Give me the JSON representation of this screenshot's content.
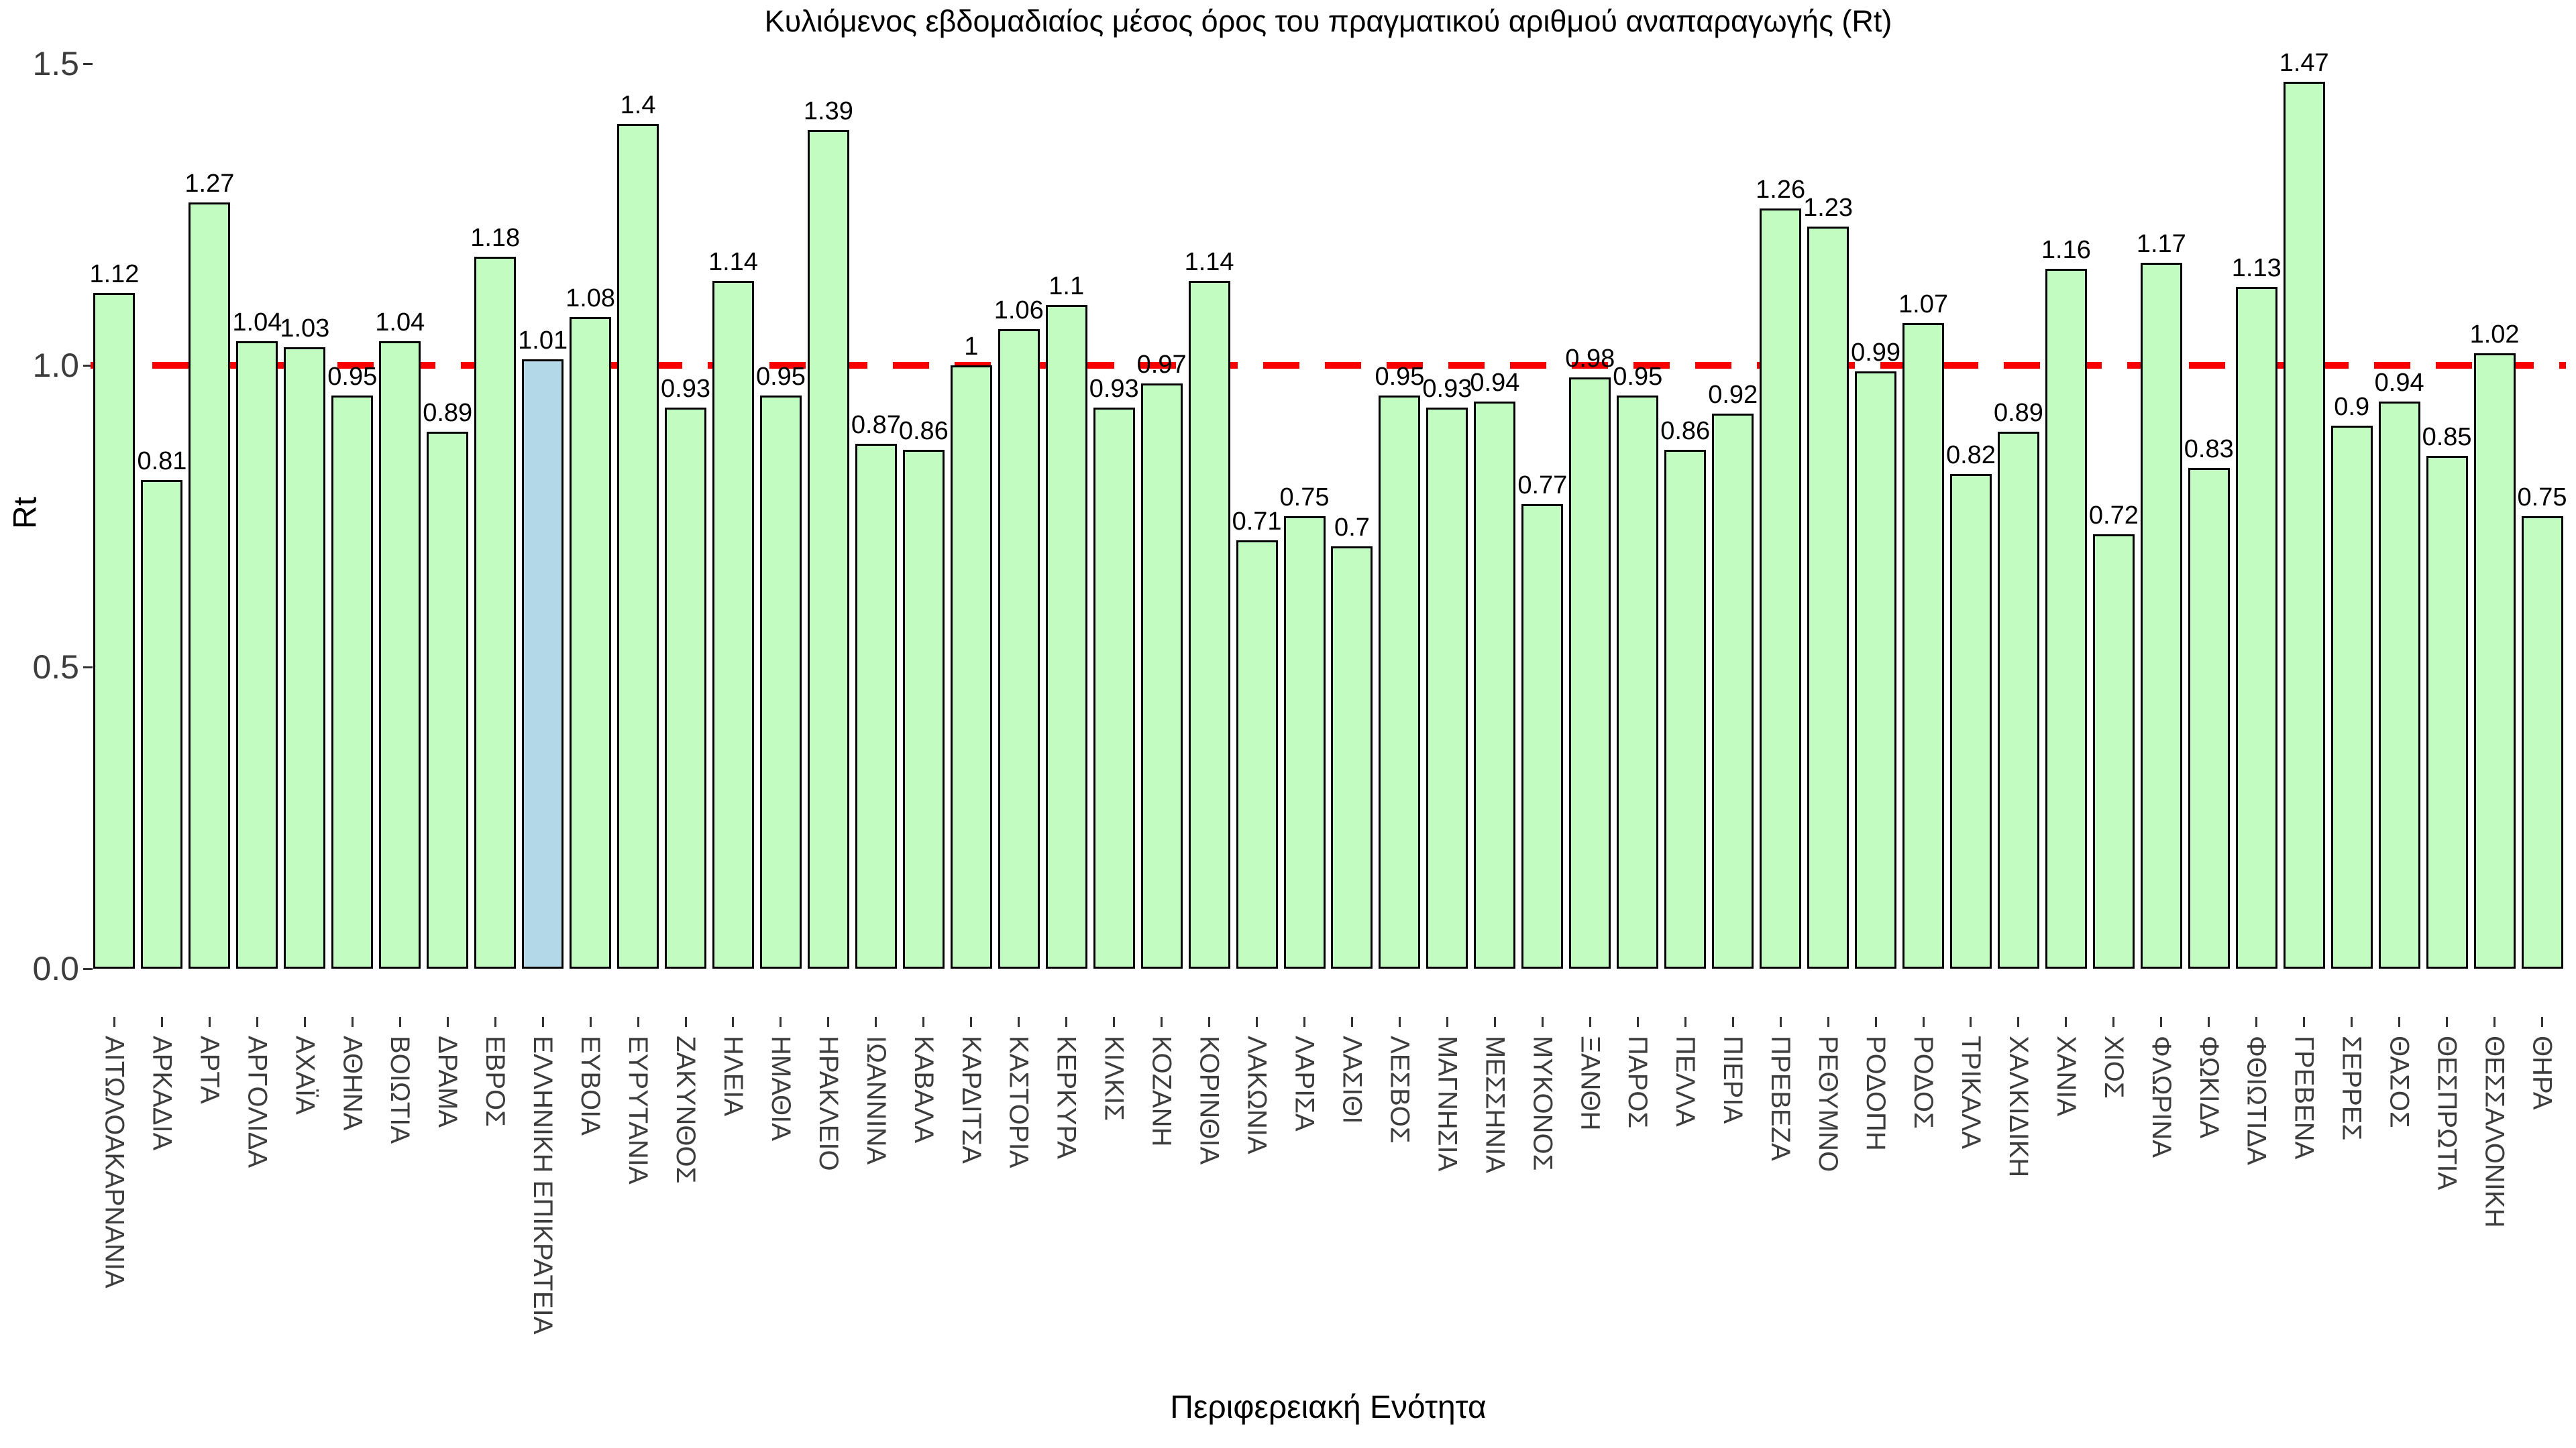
{
  "title": "Κυλιόμενος εβδομαδιαίος μέσος όρος του πραγματικού αριθμού αναπαραγωγής (Rt)",
  "y_axis": {
    "label": "Rt",
    "ticks": [
      {
        "label": "0.0",
        "value": 0.0
      },
      {
        "label": "0.5",
        "value": 0.5
      },
      {
        "label": "1.0",
        "value": 1.0
      },
      {
        "label": "1.5",
        "value": 1.5
      }
    ]
  },
  "x_axis": {
    "label": "Περιφερειακή Ενότητα"
  },
  "colors": {
    "bar_fill": "#c3fcc1",
    "highlight_fill": "#b3d9e9",
    "bar_border": "#000000",
    "reference_line": "#f80000",
    "tick_text": "#3d3d3d"
  },
  "chart_data": {
    "type": "bar",
    "title": "Κυλιόμενος εβδομαδιαίος μέσος όρος του πραγματικού αριθμού αναπαραγωγής (Rt)",
    "xlabel": "Περιφερειακή Ενότητα",
    "ylabel": "Rt",
    "ylim": [
      0,
      1.55
    ],
    "grid": false,
    "reference_line_y": 1.0,
    "reference_line_style": "dashed",
    "highlighted_category": "ΕΛΛΗΝΙΚΗ ΕΠΙΚΡΑΤΕΙΑ",
    "categories": [
      "ΑΙΤΩΛΟΑΚΑΡΝΑΝΙΑ",
      "ΑΡΚΑΔΙΑ",
      "ΑΡΤΑ",
      "ΑΡΓΟΛΙΔΑ",
      "ΑΧΑΪΑ",
      "ΑΘΗΝΑ",
      "ΒΟΙΩΤΙΑ",
      "ΔΡΑΜΑ",
      "ΕΒΡΟΣ",
      "ΕΛΛΗΝΙΚΗ ΕΠΙΚΡΑΤΕΙΑ",
      "ΕΥΒΟΙΑ",
      "ΕΥΡΥΤΑΝΙΑ",
      "ΖΑΚΥΝΘΟΣ",
      "ΗΛΕΙΑ",
      "ΗΜΑΘΙΑ",
      "ΗΡΑΚΛΕΙΟ",
      "ΙΩΑΝΝΙΝΑ",
      "ΚΑΒΑΛΑ",
      "ΚΑΡΔΙΤΣΑ",
      "ΚΑΣΤΟΡΙΑ",
      "ΚΕΡΚΥΡΑ",
      "ΚΙΛΚΙΣ",
      "ΚΟΖΑΝΗ",
      "ΚΟΡΙΝΘΙΑ",
      "ΛΑΚΩΝΙΑ",
      "ΛΑΡΙΣΑ",
      "ΛΑΣΙΘΙ",
      "ΛΕΣΒΟΣ",
      "ΜΑΓΝΗΣΙΑ",
      "ΜΕΣΣΗΝΙΑ",
      "ΜΥΚΟΝΟΣ",
      "ΞΑΝΘΗ",
      "ΠΑΡΟΣ",
      "ΠΕΛΛΑ",
      "ΠΙΕΡΙΑ",
      "ΠΡΕΒΕΖΑ",
      "ΡΕΘΥΜΝΟ",
      "ΡΟΔΟΠΗ",
      "ΡΟΔΟΣ",
      "ΤΡΙΚΑΛΑ",
      "ΧΑΛΚΙΔΙΚΗ",
      "ΧΑΝΙΑ",
      "ΧΙΟΣ",
      "ΦΛΩΡΙΝΑ",
      "ΦΩΚΙΔΑ",
      "ΦΘΙΩΤΙΔΑ",
      "ΓΡΕΒΕΝΑ",
      "ΣΕΡΡΕΣ",
      "ΘΑΣΟΣ",
      "ΘΕΣΠΡΩΤΙΑ",
      "ΘΕΣΣΑΛΟΝΙΚΗ",
      "ΘΗΡΑ"
    ],
    "values": [
      1.12,
      0.81,
      1.27,
      1.04,
      1.03,
      0.95,
      1.04,
      0.89,
      1.18,
      1.01,
      1.08,
      1.4,
      0.93,
      1.14,
      0.95,
      1.39,
      0.87,
      0.86,
      1,
      1.06,
      1.1,
      0.93,
      0.97,
      1.14,
      0.71,
      0.75,
      0.7,
      0.95,
      0.93,
      0.94,
      0.77,
      0.98,
      0.95,
      0.86,
      0.92,
      1.26,
      1.23,
      0.99,
      1.07,
      0.82,
      0.89,
      1.16,
      0.72,
      1.17,
      0.83,
      1.13,
      1.47,
      0.9,
      0.94,
      0.85,
      1.02,
      0.75
    ]
  }
}
